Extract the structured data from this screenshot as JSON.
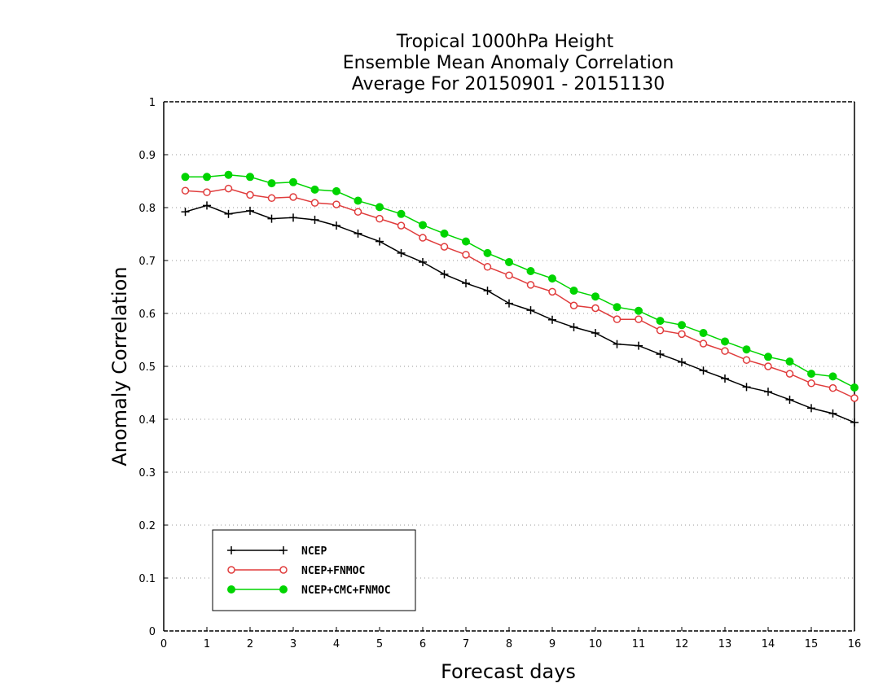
{
  "chart_data": {
    "type": "line",
    "title": [
      "Tropical 1000hPa Height",
      "Ensemble Mean Anomaly Correlation",
      "Average For 20150901 - 20151130"
    ],
    "xlabel": "Forecast days",
    "ylabel": "Anomaly Correlation",
    "xlim": [
      0,
      16
    ],
    "ylim": [
      0,
      1
    ],
    "x_ticks": [
      0,
      1,
      2,
      3,
      4,
      5,
      6,
      7,
      8,
      9,
      10,
      11,
      12,
      13,
      14,
      15,
      16
    ],
    "y_ticks": [
      "0",
      "0.1",
      "0.2",
      "0.3",
      "0.4",
      "0.5",
      "0.6",
      "0.7",
      "0.8",
      "0.9",
      "1"
    ],
    "grid": "horizontal dotted",
    "legend_position": "bottom-left",
    "x": [
      0.5,
      1,
      1.5,
      2,
      2.5,
      3,
      3.5,
      4,
      4.5,
      5,
      5.5,
      6,
      6.5,
      7,
      7.5,
      8,
      8.5,
      9,
      9.5,
      10,
      10.5,
      11,
      11.5,
      12,
      12.5,
      13,
      13.5,
      14,
      14.5,
      15,
      15.5,
      16
    ],
    "series": [
      {
        "name": "NCEP",
        "color": "#000000",
        "marker": "plus",
        "values": [
          0.792,
          0.804,
          0.788,
          0.794,
          0.779,
          0.781,
          0.777,
          0.766,
          0.751,
          0.736,
          0.714,
          0.697,
          0.674,
          0.657,
          0.643,
          0.619,
          0.606,
          0.588,
          0.574,
          0.563,
          0.542,
          0.539,
          0.523,
          0.508,
          0.492,
          0.477,
          0.461,
          0.452,
          0.437,
          0.421,
          0.411,
          0.394
        ]
      },
      {
        "name": "NCEP+FNMOC",
        "color": "#e03c3c",
        "marker": "open-circle",
        "values": [
          0.832,
          0.829,
          0.836,
          0.824,
          0.818,
          0.82,
          0.809,
          0.806,
          0.792,
          0.779,
          0.766,
          0.743,
          0.726,
          0.711,
          0.688,
          0.672,
          0.654,
          0.641,
          0.615,
          0.61,
          0.589,
          0.589,
          0.568,
          0.561,
          0.543,
          0.529,
          0.512,
          0.5,
          0.486,
          0.468,
          0.459,
          0.44
        ]
      },
      {
        "name": "NCEP+CMC+FNMOC",
        "color": "#00d400",
        "marker": "filled-circle",
        "values": [
          0.858,
          0.858,
          0.862,
          0.858,
          0.846,
          0.848,
          0.834,
          0.831,
          0.813,
          0.801,
          0.788,
          0.767,
          0.751,
          0.736,
          0.714,
          0.697,
          0.68,
          0.666,
          0.643,
          0.632,
          0.612,
          0.605,
          0.586,
          0.578,
          0.563,
          0.547,
          0.532,
          0.518,
          0.509,
          0.486,
          0.481,
          0.46
        ]
      }
    ]
  }
}
